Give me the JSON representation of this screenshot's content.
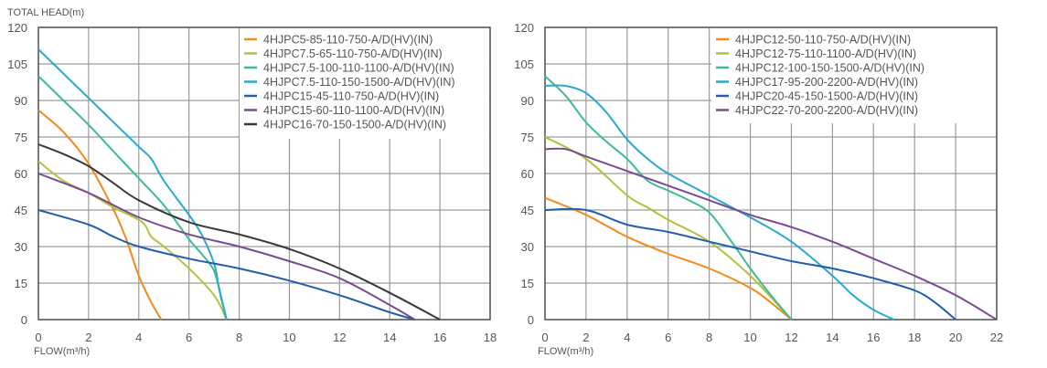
{
  "chart_data": [
    {
      "type": "line",
      "ylabel": "TOTAL HEAD(m)",
      "xlabel": "FLOW(m³/h)",
      "xlim": [
        0,
        18
      ],
      "ylim": [
        0,
        120
      ],
      "xticks": [
        0,
        2,
        4,
        6,
        8,
        10,
        12,
        14,
        16,
        18
      ],
      "yticks": [
        0,
        15,
        30,
        45,
        60,
        75,
        90,
        105,
        120
      ],
      "grid": true,
      "legend_position": "top-right",
      "series": [
        {
          "name": "4HJPC5-85-110-750-A/D(HV)(IN)",
          "color": "#f28a1e",
          "x": [
            0,
            1,
            2,
            3,
            3.5,
            4,
            4.5,
            4.9
          ],
          "y": [
            86,
            77,
            64,
            45,
            33,
            18,
            7,
            0
          ]
        },
        {
          "name": "4HJPC7.5-65-110-750-A/D(HV)(IN)",
          "color": "#b5c13a",
          "x": [
            0,
            1,
            2,
            3,
            4,
            4.3,
            4.5,
            5,
            6,
            7,
            7.5
          ],
          "y": [
            65,
            57,
            52,
            46,
            41,
            38,
            34,
            30,
            21,
            10,
            0
          ]
        },
        {
          "name": "4HJPC7.5-100-110-1100-A/D(HV)(IN)",
          "color": "#3dbb94",
          "x": [
            0,
            1,
            2,
            3,
            4,
            5,
            6,
            6.5,
            7,
            7.3,
            7.5
          ],
          "y": [
            100,
            90,
            80,
            69,
            58,
            47,
            33,
            27,
            20,
            8,
            0
          ]
        },
        {
          "name": "4HJPC7.5-110-150-1500-A/D(HV)(IN)",
          "color": "#29a9d0",
          "x": [
            0,
            1,
            2,
            3,
            4,
            4.5,
            5,
            6,
            6.5,
            7,
            7.2,
            7.5
          ],
          "y": [
            111,
            101,
            91,
            81,
            71,
            66,
            57,
            43,
            35,
            23,
            13,
            0
          ]
        },
        {
          "name": "4HJPC15-45-110-750-A/D(HV)(IN)",
          "color": "#1f5fae",
          "x": [
            0,
            2,
            3,
            4,
            6,
            8,
            10,
            12,
            14,
            15
          ],
          "y": [
            45,
            39,
            34,
            30,
            25,
            21,
            16,
            10,
            3,
            0
          ]
        },
        {
          "name": "4HJPC15-60-110-1100-A/D(HV)(IN)",
          "color": "#7b4a93",
          "x": [
            0,
            2,
            4,
            6,
            8,
            10,
            12,
            14,
            15
          ],
          "y": [
            60,
            52,
            42,
            35,
            30,
            24,
            17,
            6,
            0
          ]
        },
        {
          "name": "4HJPC16-70-150-1500-A/D(HV)(IN)",
          "color": "#3a3a3a",
          "x": [
            0,
            1,
            2,
            3,
            4,
            6,
            8,
            10,
            12,
            14,
            16
          ],
          "y": [
            72,
            68,
            63,
            56,
            49,
            40,
            35,
            29,
            21,
            11,
            0
          ]
        }
      ]
    },
    {
      "type": "line",
      "ylabel": "",
      "xlabel": "FLOW(m³/h)",
      "xlim": [
        0,
        22
      ],
      "ylim": [
        0,
        120
      ],
      "xticks": [
        0,
        2,
        4,
        6,
        8,
        10,
        12,
        14,
        16,
        18,
        20,
        22
      ],
      "yticks": [
        0,
        15,
        30,
        45,
        60,
        75,
        90,
        105,
        120
      ],
      "grid": true,
      "legend_position": "top-right",
      "series": [
        {
          "name": "4HJPC12-50-110-750-A/D(HV)(IN)",
          "color": "#f28a1e",
          "x": [
            0,
            2,
            4,
            6,
            8,
            10,
            11,
            12
          ],
          "y": [
            50,
            43,
            34,
            27,
            21,
            13,
            7,
            0
          ]
        },
        {
          "name": "4HJPC12-75-110-1100-A/D(HV)(IN)",
          "color": "#b5c13a",
          "x": [
            0,
            2,
            4,
            5,
            6,
            8,
            10,
            12
          ],
          "y": [
            75,
            66,
            51,
            46,
            41,
            32,
            18,
            0
          ]
        },
        {
          "name": "4HJPC12-100-150-1500-A/D(HV)(IN)",
          "color": "#3dbb94",
          "x": [
            0,
            1,
            2,
            3,
            4,
            5,
            6,
            7,
            8,
            9,
            10,
            11,
            12
          ],
          "y": [
            100,
            92,
            81,
            73,
            66,
            57,
            53,
            49,
            44,
            33,
            21,
            10,
            0
          ]
        },
        {
          "name": "4HJPC17-95-200-2200-A/D(HV)(IN)",
          "color": "#29a9d0",
          "x": [
            0,
            1,
            2,
            3,
            4,
            5,
            6,
            8,
            10,
            12,
            14,
            15,
            16,
            17
          ],
          "y": [
            96,
            96,
            93,
            85,
            74,
            66,
            60,
            51,
            42,
            32,
            18,
            10,
            4,
            0
          ]
        },
        {
          "name": "4HJPC20-45-150-1500-A/D(HV)(IN)",
          "color": "#1f5fae",
          "x": [
            0,
            2,
            4,
            6,
            8,
            10,
            12,
            14,
            16,
            18,
            19,
            20
          ],
          "y": [
            45,
            45,
            39,
            36,
            32,
            28,
            24,
            21,
            17,
            12,
            7,
            0
          ]
        },
        {
          "name": "4HJPC22-70-200-2200-A/D(HV)(IN)",
          "color": "#7b4a93",
          "x": [
            0,
            1,
            2,
            4,
            6,
            8,
            10,
            12,
            14,
            16,
            18,
            20,
            22
          ],
          "y": [
            70,
            70,
            67,
            61,
            55,
            49,
            43,
            38,
            32,
            25,
            18,
            10,
            0
          ]
        }
      ]
    }
  ]
}
